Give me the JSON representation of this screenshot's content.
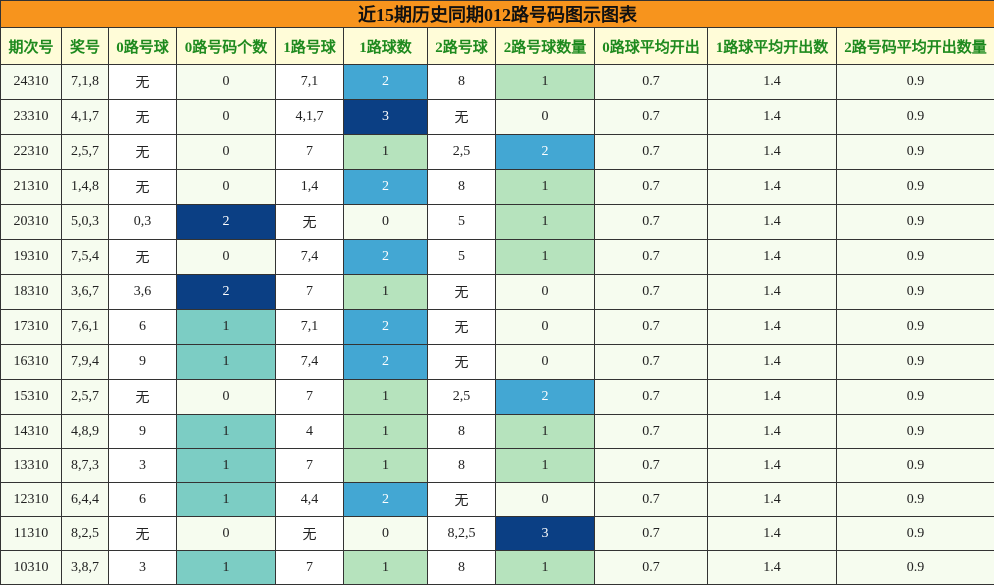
{
  "title": "近15期历史同期012路号码图示图表",
  "headers": [
    "期次号",
    "奖号",
    "0路号球",
    "0路号码个数",
    "1路号球",
    "1路球数",
    "2路号球",
    "2路号球数量",
    "0路球平均开出",
    "1路球平均开出数",
    "2路号码平均开出数量"
  ],
  "rows": [
    [
      "24310",
      "7,1,8",
      "无",
      "0",
      "7,1",
      "2",
      "8",
      "1",
      "0.7",
      "1.4",
      "0.9"
    ],
    [
      "23310",
      "4,1,7",
      "无",
      "0",
      "4,1,7",
      "3",
      "无",
      "0",
      "0.7",
      "1.4",
      "0.9"
    ],
    [
      "22310",
      "2,5,7",
      "无",
      "0",
      "7",
      "1",
      "2,5",
      "2",
      "0.7",
      "1.4",
      "0.9"
    ],
    [
      "21310",
      "1,4,8",
      "无",
      "0",
      "1,4",
      "2",
      "8",
      "1",
      "0.7",
      "1.4",
      "0.9"
    ],
    [
      "20310",
      "5,0,3",
      "0,3",
      "2",
      "无",
      "0",
      "5",
      "1",
      "0.7",
      "1.4",
      "0.9"
    ],
    [
      "19310",
      "7,5,4",
      "无",
      "0",
      "7,4",
      "2",
      "5",
      "1",
      "0.7",
      "1.4",
      "0.9"
    ],
    [
      "18310",
      "3,6,7",
      "3,6",
      "2",
      "7",
      "1",
      "无",
      "0",
      "0.7",
      "1.4",
      "0.9"
    ],
    [
      "17310",
      "7,6,1",
      "6",
      "1",
      "7,1",
      "2",
      "无",
      "0",
      "0.7",
      "1.4",
      "0.9"
    ],
    [
      "16310",
      "7,9,4",
      "9",
      "1",
      "7,4",
      "2",
      "无",
      "0",
      "0.7",
      "1.4",
      "0.9"
    ],
    [
      "15310",
      "2,5,7",
      "无",
      "0",
      "7",
      "1",
      "2,5",
      "2",
      "0.7",
      "1.4",
      "0.9"
    ],
    [
      "14310",
      "4,8,9",
      "9",
      "1",
      "4",
      "1",
      "8",
      "1",
      "0.7",
      "1.4",
      "0.9"
    ],
    [
      "13310",
      "8,7,3",
      "3",
      "1",
      "7",
      "1",
      "8",
      "1",
      "0.7",
      "1.4",
      "0.9"
    ],
    [
      "12310",
      "6,4,4",
      "6",
      "1",
      "4,4",
      "2",
      "无",
      "0",
      "0.7",
      "1.4",
      "0.9"
    ],
    [
      "11310",
      "8,2,5",
      "无",
      "0",
      "无",
      "0",
      "8,2,5",
      "3",
      "0.7",
      "1.4",
      "0.9"
    ],
    [
      "10310",
      "3,8,7",
      "3",
      "1",
      "7",
      "1",
      "8",
      "1",
      "0.7",
      "1.4",
      "0.9"
    ]
  ],
  "colors": {
    "title_bg": "#f7941d",
    "header_bg": "#fffcd8",
    "header_text": "#1e8a1e",
    "count_0": "#f6fcef",
    "count_1_zero_route": "#7ccdc4",
    "count_1": "#b6e3bd",
    "count_2": "#43a7d3",
    "count_3": "#0b3f84"
  }
}
